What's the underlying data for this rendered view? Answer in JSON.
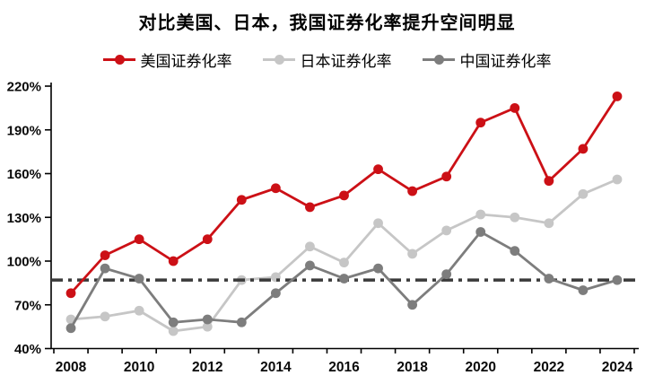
{
  "page": {
    "background": "#ffffff"
  },
  "chart_data": {
    "type": "line",
    "title": "对比美国、日本，我国证券化率提升空间明显",
    "x": [
      2008,
      2009,
      2010,
      2011,
      2012,
      2013,
      2014,
      2015,
      2016,
      2017,
      2018,
      2019,
      2020,
      2021,
      2022,
      2023,
      2024
    ],
    "x_axis_labeled_ticks": [
      "2008",
      "2010",
      "2012",
      "2014",
      "2016",
      "2018",
      "2020",
      "2022",
      "2024"
    ],
    "y_unit": "%",
    "ylim": [
      40,
      220
    ],
    "ytick_step": 30,
    "ytick_labels": [
      "40%",
      "70%",
      "100%",
      "130%",
      "160%",
      "190%",
      "220%"
    ],
    "grid": false,
    "legend_position": "top",
    "series": [
      {
        "id": "us",
        "name": "美国证券化率",
        "color": "#CC1016",
        "values": [
          78,
          104,
          115,
          100,
          115,
          142,
          150,
          137,
          145,
          163,
          148,
          158,
          195,
          205,
          155,
          177,
          213
        ]
      },
      {
        "id": "japan",
        "name": "日本证券化率",
        "color": "#C6C6C6",
        "values": [
          60,
          62,
          66,
          52,
          55,
          87,
          89,
          110,
          99,
          126,
          105,
          121,
          132,
          130,
          126,
          146,
          156
        ]
      },
      {
        "id": "china",
        "name": "中国证券化率",
        "color": "#7D7D7D",
        "values": [
          54,
          95,
          88,
          58,
          60,
          58,
          78,
          97,
          88,
          95,
          70,
          91,
          120,
          107,
          88,
          80,
          87
        ]
      }
    ],
    "reference_line": {
      "value": 87,
      "style": "dash-dot",
      "color": "#3A3A3A"
    },
    "axis_color": "#000000"
  }
}
